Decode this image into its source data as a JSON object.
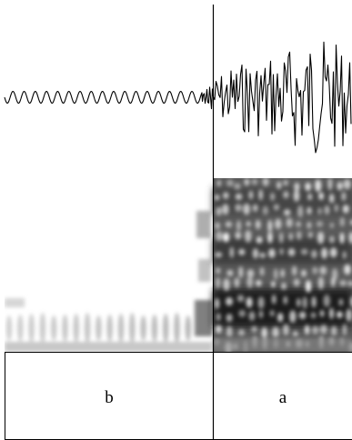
{
  "segments": [
    {
      "label": "b"
    },
    {
      "label": "a"
    }
  ]
}
